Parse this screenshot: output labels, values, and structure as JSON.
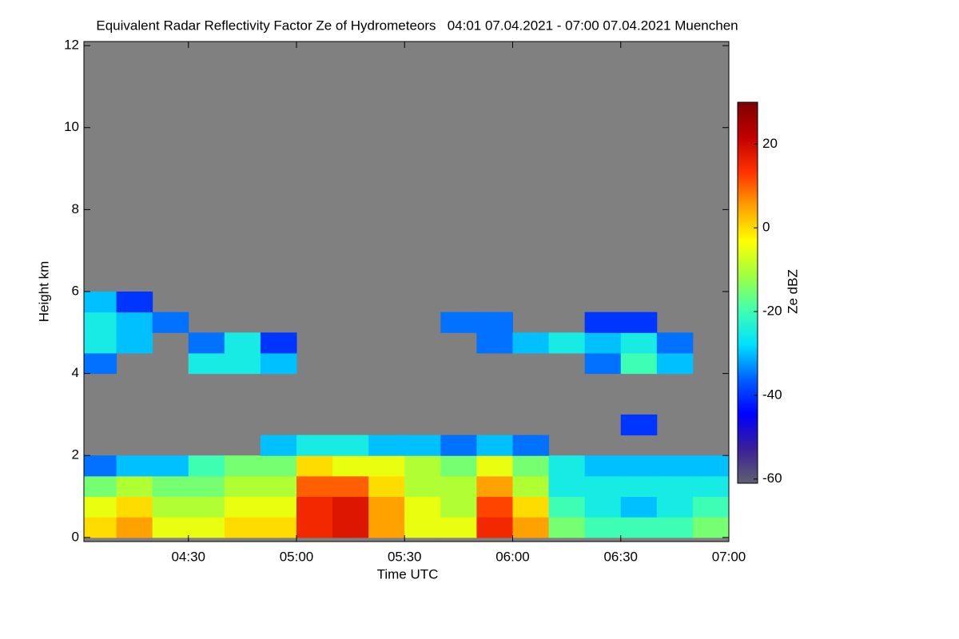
{
  "chart_data": {
    "type": "heatmap",
    "title": "Equivalent Radar Reflectivity Factor Ze of Hydrometeors   04:01 07.04.2021 - 07:00 07.04.2021 Muenchen",
    "x_label": "Time UTC",
    "y_label": "Height km",
    "colorbar_label": "Ze dBZ",
    "xlim": [
      241,
      420
    ],
    "xticks": [
      {
        "value": 270,
        "label": "04:30"
      },
      {
        "value": 300,
        "label": "05:00"
      },
      {
        "value": 330,
        "label": "05:30"
      },
      {
        "value": 360,
        "label": "06:00"
      },
      {
        "value": 390,
        "label": "06:30"
      },
      {
        "value": 420,
        "label": "07:00"
      }
    ],
    "ylim": [
      -0.1,
      12.1
    ],
    "yticks": [
      0,
      2,
      4,
      6,
      8,
      10,
      12
    ],
    "zlim": [
      -61,
      30
    ],
    "zticks": [
      -60,
      -40,
      -20,
      0,
      20
    ],
    "null_color": "#808080",
    "colorscale": [
      "#606070",
      "#3a1f9a",
      "#0000ff",
      "#0060ff",
      "#00e0ff",
      "#40ffb0",
      "#a0ff40",
      "#ffff00",
      "#ffa000",
      "#ff3000",
      "#c00000",
      "#800000"
    ],
    "x_bins": [
      241,
      250,
      260,
      270,
      280,
      290,
      300,
      310,
      320,
      330,
      340,
      350,
      360,
      370,
      380,
      390,
      400,
      410,
      420
    ],
    "y_bins": [
      0,
      0.5,
      1,
      1.5,
      2,
      2.5,
      3,
      3.5,
      4,
      4.5,
      5,
      5.5,
      6
    ],
    "values": [
      [
        0,
        5,
        -5,
        -5,
        0,
        0,
        15,
        18,
        5,
        -5,
        -5,
        15,
        5,
        -15,
        -20,
        -20,
        -20,
        -15
      ],
      [
        -5,
        0,
        -10,
        -10,
        -5,
        -5,
        15,
        18,
        5,
        -5,
        -10,
        12,
        0,
        -20,
        -25,
        -30,
        -25,
        -20
      ],
      [
        -15,
        -10,
        -15,
        -15,
        -10,
        -10,
        10,
        10,
        0,
        -10,
        -10,
        5,
        -10,
        -25,
        -25,
        -25,
        -25,
        -25
      ],
      [
        -35,
        -30,
        -30,
        -20,
        -15,
        -15,
        0,
        -5,
        -5,
        -10,
        -15,
        -5,
        -15,
        -25,
        -30,
        -30,
        -30,
        -30
      ],
      [
        null,
        null,
        null,
        null,
        null,
        -30,
        -25,
        -25,
        -30,
        -30,
        -35,
        -30,
        -35,
        null,
        null,
        null,
        null,
        null
      ],
      [
        null,
        null,
        null,
        null,
        null,
        null,
        null,
        null,
        null,
        null,
        null,
        null,
        null,
        null,
        null,
        -40,
        null,
        null
      ],
      [
        null,
        null,
        null,
        null,
        null,
        null,
        null,
        null,
        null,
        null,
        null,
        null,
        null,
        null,
        null,
        null,
        null,
        null
      ],
      [
        null,
        null,
        null,
        null,
        null,
        null,
        null,
        null,
        null,
        null,
        null,
        null,
        null,
        null,
        null,
        null,
        null,
        null
      ],
      [
        -35,
        null,
        null,
        -25,
        -25,
        -30,
        null,
        null,
        null,
        null,
        null,
        null,
        null,
        null,
        -35,
        -20,
        -30,
        null
      ],
      [
        -25,
        -30,
        null,
        -35,
        -25,
        -40,
        null,
        null,
        null,
        null,
        null,
        -35,
        -30,
        -25,
        -30,
        -25,
        -35,
        null
      ],
      [
        -25,
        -30,
        -35,
        null,
        null,
        null,
        null,
        null,
        null,
        null,
        -35,
        -35,
        null,
        null,
        -40,
        -40,
        null,
        null
      ],
      [
        -30,
        -40,
        null,
        null,
        null,
        null,
        null,
        null,
        null,
        null,
        null,
        null,
        null,
        null,
        null,
        null,
        null,
        null
      ]
    ]
  }
}
